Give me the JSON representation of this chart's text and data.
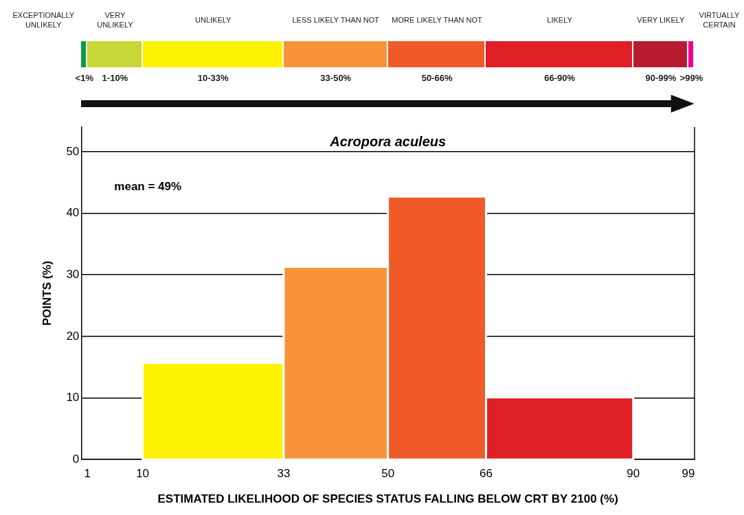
{
  "chart_data": [
    {
      "type": "other",
      "categories": [
        "EXCEPTIONALLY UNLIKELY",
        "VERY UNLIKELY",
        "UNLIKELY",
        "LESS LIKELY THAN NOT",
        "MORE LIKELY THAN NOT",
        "LIKELY",
        "VERY LIKELY",
        "VIRTUALLY CERTAIN"
      ],
      "annotations": [
        "<1%",
        "1-10%",
        "10-33%",
        "33-50%",
        "50-66%",
        "66-90%",
        "90-99%",
        ">99%"
      ],
      "colors": [
        "#0a9a48",
        "#c8d636",
        "#fff200",
        "#f7943a",
        "#f05a28",
        "#e01e25",
        "#b91c2e",
        "#ec008c"
      ]
    },
    {
      "type": "histogram",
      "title": "Acropora aculeus",
      "xlabel": "ESTIMATED LIKELIHOOD OF SPECIES STATUS FALLING BELOW CRT BY 2100 (%)",
      "ylabel": "POINTS (%)",
      "bins": [
        10,
        33,
        50,
        66,
        90
      ],
      "values": [
        15.7,
        31.3,
        42.7,
        10.1
      ],
      "colors": [
        "#fff200",
        "#f7943a",
        "#f05a28",
        "#e01e25"
      ],
      "xlim": [
        0,
        100
      ],
      "xticks": [
        1,
        10,
        33,
        50,
        66,
        90,
        99
      ],
      "ylim": [
        0,
        54
      ],
      "yticks": [
        0,
        10,
        20,
        30,
        40,
        50
      ],
      "grid": "y",
      "legend": false,
      "annotations": [
        "mean = 49%"
      ]
    }
  ]
}
